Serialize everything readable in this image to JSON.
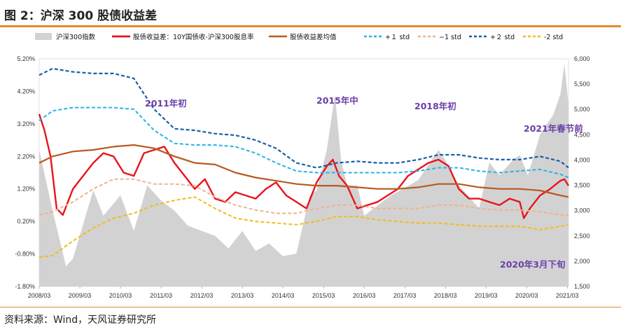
{
  "figure": {
    "title": "图 2：沪深 300 股债收益差",
    "source": "资料来源：Wind，天风证券研究所"
  },
  "colors": {
    "accent_rule": "#e8882e",
    "index_area": "#d2d2d2",
    "spread": "#e8141c",
    "mean": "#b85a1f",
    "plus1": "#27b3e6",
    "minus1": "#f0b38e",
    "plus2": "#1a5fa8",
    "minus2": "#f2bc1a",
    "annotation": "#6a3fa8"
  },
  "chart_data": {
    "type": "line",
    "x_ticks": [
      "2008/03",
      "2009/03",
      "2010/03",
      "2011/03",
      "2012/03",
      "2013/03",
      "2014/03",
      "2015/03",
      "2016/03",
      "2017/03",
      "2018/03",
      "2019/03",
      "2020/03",
      "2021/03"
    ],
    "y_left": {
      "ticks": [
        "5.20%",
        "4.20%",
        "3.20%",
        "2.20%",
        "1.20%",
        "0.20%",
        "-0.80%",
        "-1.80%"
      ],
      "ylim": [
        -1.8,
        5.2
      ]
    },
    "y_right": {
      "ticks": [
        "6,000",
        "5,500",
        "5,000",
        "4,500",
        "4,000",
        "3,500",
        "3,000",
        "2,500",
        "2,000",
        "1,500"
      ],
      "ylim": [
        1500,
        6000
      ]
    },
    "legend": [
      "沪深300指数",
      "股债收益差：10Y国债收-沪深300股息率",
      "股债收益差均值",
      "+１ std",
      "−1 std",
      "+２ std",
      "-2 std"
    ],
    "annotations": [
      "2011年初",
      "2015年中",
      "2018年初",
      "2021年春节前",
      "2020年3月下旬"
    ],
    "series": [
      {
        "name": "沪深300指数",
        "axis": "right",
        "kind": "area",
        "x": [
          2008.17,
          2008.5,
          2008.83,
          2009.0,
          2009.5,
          2009.75,
          2010.17,
          2010.5,
          2010.83,
          2011.17,
          2011.5,
          2011.83,
          2012.17,
          2012.5,
          2012.83,
          2013.17,
          2013.5,
          2013.83,
          2014.17,
          2014.5,
          2014.83,
          2015.0,
          2015.25,
          2015.45,
          2015.6,
          2015.75,
          2016.0,
          2016.17,
          2016.5,
          2016.83,
          2017.17,
          2017.5,
          2017.83,
          2018.0,
          2018.17,
          2018.5,
          2018.83,
          2019.0,
          2019.25,
          2019.5,
          2019.83,
          2020.0,
          2020.2,
          2020.5,
          2020.83,
          2021.0,
          2021.1,
          2021.2
        ],
        "y": [
          4200,
          3000,
          1900,
          2050,
          3400,
          2900,
          3300,
          2600,
          3500,
          3200,
          3000,
          2700,
          2600,
          2500,
          2250,
          2600,
          2200,
          2350,
          2100,
          2150,
          3300,
          3400,
          4200,
          5300,
          4000,
          3500,
          3500,
          2900,
          3100,
          3300,
          3450,
          3600,
          4000,
          4200,
          4000,
          3500,
          3200,
          3050,
          3950,
          3700,
          4000,
          4100,
          3700,
          4500,
          4900,
          5300,
          5900,
          5100
        ]
      },
      {
        "name": "股债收益差：10Y国债收-沪深300股息率",
        "axis": "left",
        "kind": "line",
        "x": [
          2008.17,
          2008.3,
          2008.45,
          2008.6,
          2008.75,
          2009.0,
          2009.25,
          2009.5,
          2009.75,
          2010.0,
          2010.25,
          2010.5,
          2010.75,
          2011.0,
          2011.25,
          2011.5,
          2011.75,
          2012.0,
          2012.25,
          2012.5,
          2012.75,
          2013.0,
          2013.25,
          2013.5,
          2013.75,
          2014.0,
          2014.25,
          2014.5,
          2014.75,
          2015.0,
          2015.25,
          2015.4,
          2015.55,
          2015.75,
          2016.0,
          2016.25,
          2016.5,
          2016.75,
          2017.0,
          2017.25,
          2017.5,
          2017.75,
          2018.0,
          2018.25,
          2018.5,
          2018.75,
          2019.0,
          2019.25,
          2019.5,
          2019.75,
          2020.0,
          2020.1,
          2020.25,
          2020.5,
          2020.75,
          2021.0,
          2021.1,
          2021.2
        ],
        "y": [
          3.5,
          3.0,
          2.2,
          0.6,
          0.4,
          1.2,
          1.6,
          2.0,
          2.3,
          2.2,
          1.7,
          1.6,
          2.3,
          2.4,
          2.5,
          2.0,
          1.6,
          1.2,
          1.5,
          0.9,
          0.8,
          1.1,
          1.0,
          0.9,
          1.2,
          1.4,
          1.0,
          0.8,
          0.6,
          1.4,
          1.9,
          2.1,
          1.6,
          1.3,
          0.6,
          0.7,
          0.8,
          1.0,
          1.2,
          1.6,
          1.8,
          2.0,
          2.1,
          1.9,
          1.2,
          0.9,
          0.9,
          0.8,
          0.7,
          0.9,
          0.8,
          0.3,
          0.6,
          1.0,
          1.2,
          1.45,
          1.5,
          1.3
        ]
      },
      {
        "name": "股债收益差均值",
        "axis": "left",
        "kind": "line",
        "x": [
          2008.17,
          2008.5,
          2009.0,
          2009.5,
          2010.0,
          2010.5,
          2011.0,
          2011.5,
          2012.0,
          2012.5,
          2013.0,
          2013.5,
          2014.0,
          2014.5,
          2015.0,
          2015.5,
          2016.0,
          2016.5,
          2017.0,
          2017.5,
          2018.0,
          2018.5,
          2019.0,
          2019.5,
          2020.0,
          2020.5,
          2021.0,
          2021.2
        ],
        "y": [
          2.0,
          2.2,
          2.35,
          2.4,
          2.5,
          2.55,
          2.45,
          2.2,
          2.0,
          1.95,
          1.7,
          1.55,
          1.45,
          1.35,
          1.3,
          1.3,
          1.25,
          1.2,
          1.2,
          1.25,
          1.35,
          1.35,
          1.25,
          1.2,
          1.2,
          1.15,
          1.0,
          0.95
        ]
      },
      {
        "name": "+１ std",
        "axis": "left",
        "kind": "line",
        "x": [
          2008.17,
          2008.5,
          2009.0,
          2009.5,
          2010.0,
          2010.5,
          2011.0,
          2011.5,
          2012.0,
          2012.5,
          2013.0,
          2013.5,
          2014.0,
          2014.5,
          2015.0,
          2015.5,
          2016.0,
          2016.5,
          2017.0,
          2017.5,
          2018.0,
          2018.5,
          2019.0,
          2019.5,
          2020.0,
          2020.5,
          2021.0,
          2021.2
        ],
        "y": [
          3.3,
          3.6,
          3.7,
          3.7,
          3.7,
          3.65,
          3.0,
          2.6,
          2.55,
          2.55,
          2.5,
          2.3,
          2.0,
          1.75,
          1.7,
          1.7,
          1.7,
          1.7,
          1.7,
          1.75,
          1.85,
          1.85,
          1.75,
          1.7,
          1.75,
          1.8,
          1.65,
          1.55
        ]
      },
      {
        "name": "−1 std",
        "axis": "left",
        "kind": "line",
        "x": [
          2008.17,
          2008.5,
          2009.0,
          2009.5,
          2010.0,
          2010.5,
          2011.0,
          2011.5,
          2012.0,
          2012.5,
          2013.0,
          2013.5,
          2014.0,
          2014.5,
          2015.0,
          2015.5,
          2016.0,
          2016.5,
          2017.0,
          2017.5,
          2018.0,
          2018.5,
          2019.0,
          2019.5,
          2020.0,
          2020.5,
          2021.0,
          2021.2
        ],
        "y": [
          0.4,
          0.5,
          0.8,
          1.2,
          1.5,
          1.5,
          1.35,
          1.35,
          1.3,
          0.95,
          0.7,
          0.55,
          0.45,
          0.45,
          0.6,
          0.7,
          0.7,
          0.6,
          0.6,
          0.6,
          0.7,
          0.7,
          0.6,
          0.55,
          0.55,
          0.5,
          0.4,
          0.4
        ]
      },
      {
        "name": "+２ std",
        "axis": "left",
        "kind": "line",
        "x": [
          2008.17,
          2008.5,
          2009.0,
          2009.5,
          2010.0,
          2010.5,
          2011.0,
          2011.5,
          2012.0,
          2012.5,
          2013.0,
          2013.5,
          2014.0,
          2014.5,
          2015.0,
          2015.5,
          2016.0,
          2016.5,
          2017.0,
          2017.5,
          2018.0,
          2018.5,
          2019.0,
          2019.5,
          2020.0,
          2020.5,
          2021.0,
          2021.2
        ],
        "y": [
          4.7,
          4.9,
          4.8,
          4.75,
          4.75,
          4.6,
          3.65,
          3.05,
          3.0,
          2.9,
          2.85,
          2.7,
          2.45,
          2.0,
          1.85,
          2.0,
          2.05,
          2.0,
          2.0,
          2.1,
          2.25,
          2.25,
          2.15,
          2.1,
          2.1,
          2.2,
          2.05,
          1.85
        ]
      },
      {
        "name": "-2 std",
        "axis": "left",
        "kind": "line",
        "x": [
          2008.17,
          2008.5,
          2009.0,
          2009.5,
          2010.0,
          2010.5,
          2011.0,
          2011.5,
          2012.0,
          2012.5,
          2013.0,
          2013.5,
          2014.0,
          2014.5,
          2015.0,
          2015.5,
          2016.0,
          2016.5,
          2017.0,
          2017.5,
          2018.0,
          2018.5,
          2019.0,
          2019.5,
          2020.0,
          2020.5,
          2021.0,
          2021.2
        ],
        "y": [
          -0.9,
          -0.85,
          -0.4,
          0.0,
          0.3,
          0.45,
          0.7,
          0.85,
          0.95,
          0.6,
          0.3,
          0.2,
          0.15,
          0.1,
          0.2,
          0.35,
          0.35,
          0.25,
          0.2,
          0.15,
          0.15,
          0.1,
          0.05,
          0.05,
          0.05,
          -0.05,
          0.05,
          0.1
        ]
      }
    ]
  }
}
